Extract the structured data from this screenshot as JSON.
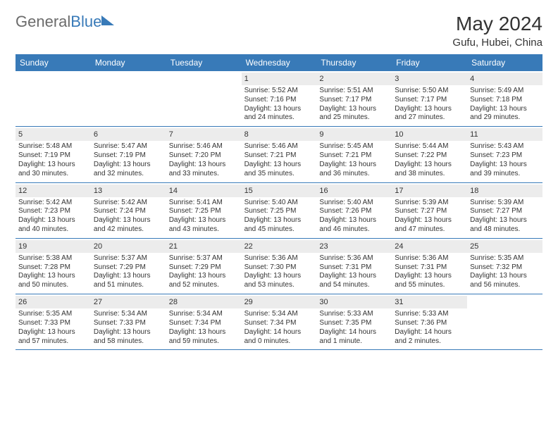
{
  "brand": {
    "part1": "General",
    "part2": "Blue"
  },
  "title": "May 2024",
  "subtitle": "Gufu, Hubei, China",
  "colors": {
    "header_bg": "#387ab8",
    "header_fg": "#ffffff",
    "daynum_bg": "#ececec",
    "border": "#387ab8",
    "text": "#333333",
    "logo_gray": "#6b6b6b",
    "logo_blue": "#387ab8"
  },
  "day_names": [
    "Sunday",
    "Monday",
    "Tuesday",
    "Wednesday",
    "Thursday",
    "Friday",
    "Saturday"
  ],
  "weeks": [
    [
      null,
      null,
      null,
      {
        "n": "1",
        "sr": "Sunrise: 5:52 AM",
        "ss": "Sunset: 7:16 PM",
        "d1": "Daylight: 13 hours",
        "d2": "and 24 minutes."
      },
      {
        "n": "2",
        "sr": "Sunrise: 5:51 AM",
        "ss": "Sunset: 7:17 PM",
        "d1": "Daylight: 13 hours",
        "d2": "and 25 minutes."
      },
      {
        "n": "3",
        "sr": "Sunrise: 5:50 AM",
        "ss": "Sunset: 7:17 PM",
        "d1": "Daylight: 13 hours",
        "d2": "and 27 minutes."
      },
      {
        "n": "4",
        "sr": "Sunrise: 5:49 AM",
        "ss": "Sunset: 7:18 PM",
        "d1": "Daylight: 13 hours",
        "d2": "and 29 minutes."
      }
    ],
    [
      {
        "n": "5",
        "sr": "Sunrise: 5:48 AM",
        "ss": "Sunset: 7:19 PM",
        "d1": "Daylight: 13 hours",
        "d2": "and 30 minutes."
      },
      {
        "n": "6",
        "sr": "Sunrise: 5:47 AM",
        "ss": "Sunset: 7:19 PM",
        "d1": "Daylight: 13 hours",
        "d2": "and 32 minutes."
      },
      {
        "n": "7",
        "sr": "Sunrise: 5:46 AM",
        "ss": "Sunset: 7:20 PM",
        "d1": "Daylight: 13 hours",
        "d2": "and 33 minutes."
      },
      {
        "n": "8",
        "sr": "Sunrise: 5:46 AM",
        "ss": "Sunset: 7:21 PM",
        "d1": "Daylight: 13 hours",
        "d2": "and 35 minutes."
      },
      {
        "n": "9",
        "sr": "Sunrise: 5:45 AM",
        "ss": "Sunset: 7:21 PM",
        "d1": "Daylight: 13 hours",
        "d2": "and 36 minutes."
      },
      {
        "n": "10",
        "sr": "Sunrise: 5:44 AM",
        "ss": "Sunset: 7:22 PM",
        "d1": "Daylight: 13 hours",
        "d2": "and 38 minutes."
      },
      {
        "n": "11",
        "sr": "Sunrise: 5:43 AM",
        "ss": "Sunset: 7:23 PM",
        "d1": "Daylight: 13 hours",
        "d2": "and 39 minutes."
      }
    ],
    [
      {
        "n": "12",
        "sr": "Sunrise: 5:42 AM",
        "ss": "Sunset: 7:23 PM",
        "d1": "Daylight: 13 hours",
        "d2": "and 40 minutes."
      },
      {
        "n": "13",
        "sr": "Sunrise: 5:42 AM",
        "ss": "Sunset: 7:24 PM",
        "d1": "Daylight: 13 hours",
        "d2": "and 42 minutes."
      },
      {
        "n": "14",
        "sr": "Sunrise: 5:41 AM",
        "ss": "Sunset: 7:25 PM",
        "d1": "Daylight: 13 hours",
        "d2": "and 43 minutes."
      },
      {
        "n": "15",
        "sr": "Sunrise: 5:40 AM",
        "ss": "Sunset: 7:25 PM",
        "d1": "Daylight: 13 hours",
        "d2": "and 45 minutes."
      },
      {
        "n": "16",
        "sr": "Sunrise: 5:40 AM",
        "ss": "Sunset: 7:26 PM",
        "d1": "Daylight: 13 hours",
        "d2": "and 46 minutes."
      },
      {
        "n": "17",
        "sr": "Sunrise: 5:39 AM",
        "ss": "Sunset: 7:27 PM",
        "d1": "Daylight: 13 hours",
        "d2": "and 47 minutes."
      },
      {
        "n": "18",
        "sr": "Sunrise: 5:39 AM",
        "ss": "Sunset: 7:27 PM",
        "d1": "Daylight: 13 hours",
        "d2": "and 48 minutes."
      }
    ],
    [
      {
        "n": "19",
        "sr": "Sunrise: 5:38 AM",
        "ss": "Sunset: 7:28 PM",
        "d1": "Daylight: 13 hours",
        "d2": "and 50 minutes."
      },
      {
        "n": "20",
        "sr": "Sunrise: 5:37 AM",
        "ss": "Sunset: 7:29 PM",
        "d1": "Daylight: 13 hours",
        "d2": "and 51 minutes."
      },
      {
        "n": "21",
        "sr": "Sunrise: 5:37 AM",
        "ss": "Sunset: 7:29 PM",
        "d1": "Daylight: 13 hours",
        "d2": "and 52 minutes."
      },
      {
        "n": "22",
        "sr": "Sunrise: 5:36 AM",
        "ss": "Sunset: 7:30 PM",
        "d1": "Daylight: 13 hours",
        "d2": "and 53 minutes."
      },
      {
        "n": "23",
        "sr": "Sunrise: 5:36 AM",
        "ss": "Sunset: 7:31 PM",
        "d1": "Daylight: 13 hours",
        "d2": "and 54 minutes."
      },
      {
        "n": "24",
        "sr": "Sunrise: 5:36 AM",
        "ss": "Sunset: 7:31 PM",
        "d1": "Daylight: 13 hours",
        "d2": "and 55 minutes."
      },
      {
        "n": "25",
        "sr": "Sunrise: 5:35 AM",
        "ss": "Sunset: 7:32 PM",
        "d1": "Daylight: 13 hours",
        "d2": "and 56 minutes."
      }
    ],
    [
      {
        "n": "26",
        "sr": "Sunrise: 5:35 AM",
        "ss": "Sunset: 7:33 PM",
        "d1": "Daylight: 13 hours",
        "d2": "and 57 minutes."
      },
      {
        "n": "27",
        "sr": "Sunrise: 5:34 AM",
        "ss": "Sunset: 7:33 PM",
        "d1": "Daylight: 13 hours",
        "d2": "and 58 minutes."
      },
      {
        "n": "28",
        "sr": "Sunrise: 5:34 AM",
        "ss": "Sunset: 7:34 PM",
        "d1": "Daylight: 13 hours",
        "d2": "and 59 minutes."
      },
      {
        "n": "29",
        "sr": "Sunrise: 5:34 AM",
        "ss": "Sunset: 7:34 PM",
        "d1": "Daylight: 14 hours",
        "d2": "and 0 minutes."
      },
      {
        "n": "30",
        "sr": "Sunrise: 5:33 AM",
        "ss": "Sunset: 7:35 PM",
        "d1": "Daylight: 14 hours",
        "d2": "and 1 minute."
      },
      {
        "n": "31",
        "sr": "Sunrise: 5:33 AM",
        "ss": "Sunset: 7:36 PM",
        "d1": "Daylight: 14 hours",
        "d2": "and 2 minutes."
      },
      null
    ]
  ]
}
